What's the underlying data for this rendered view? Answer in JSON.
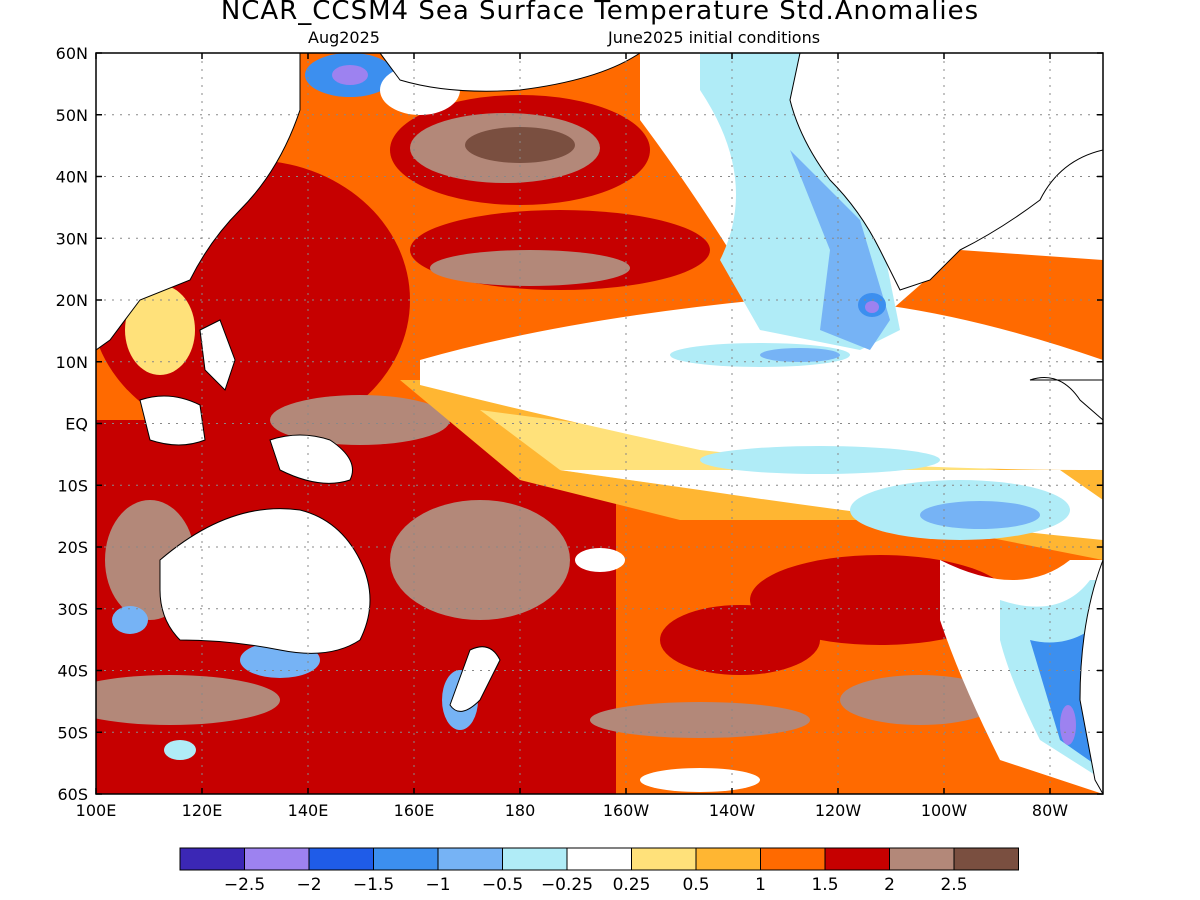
{
  "figure": {
    "title": "NCAR_CCSM4 Sea Surface Temperature Std.Anomalies",
    "subtitle_left": "Aug2025",
    "subtitle_right": "June2025 initial conditions"
  },
  "map": {
    "lon_range": [
      100,
      290
    ],
    "lat_range": [
      -60,
      60
    ],
    "lat_ticks": [
      "60N",
      "50N",
      "40N",
      "30N",
      "20N",
      "10N",
      "EQ",
      "10S",
      "20S",
      "30S",
      "40S",
      "50S",
      "60S"
    ],
    "lon_ticks": [
      "100E",
      "120E",
      "140E",
      "160E",
      "180",
      "160W",
      "140W",
      "120W",
      "100W",
      "80W"
    ],
    "grid": true,
    "land_color": "#ffffff"
  },
  "colorbar": {
    "colors": [
      "#3b27b5",
      "#9d82f0",
      "#1f5ce8",
      "#3c8fef",
      "#76b3f5",
      "#b0ecf7",
      "#ffffff",
      "#ffe17a",
      "#ffb632",
      "#ff6a00",
      "#c60000",
      "#b38879",
      "#7a4f40"
    ],
    "labels": [
      "−2.5",
      "−2",
      "−1.5",
      "−1",
      "−0.5",
      "−0.25",
      "0.25",
      "0.5",
      "1",
      "1.5",
      "2",
      "2.5"
    ]
  }
}
